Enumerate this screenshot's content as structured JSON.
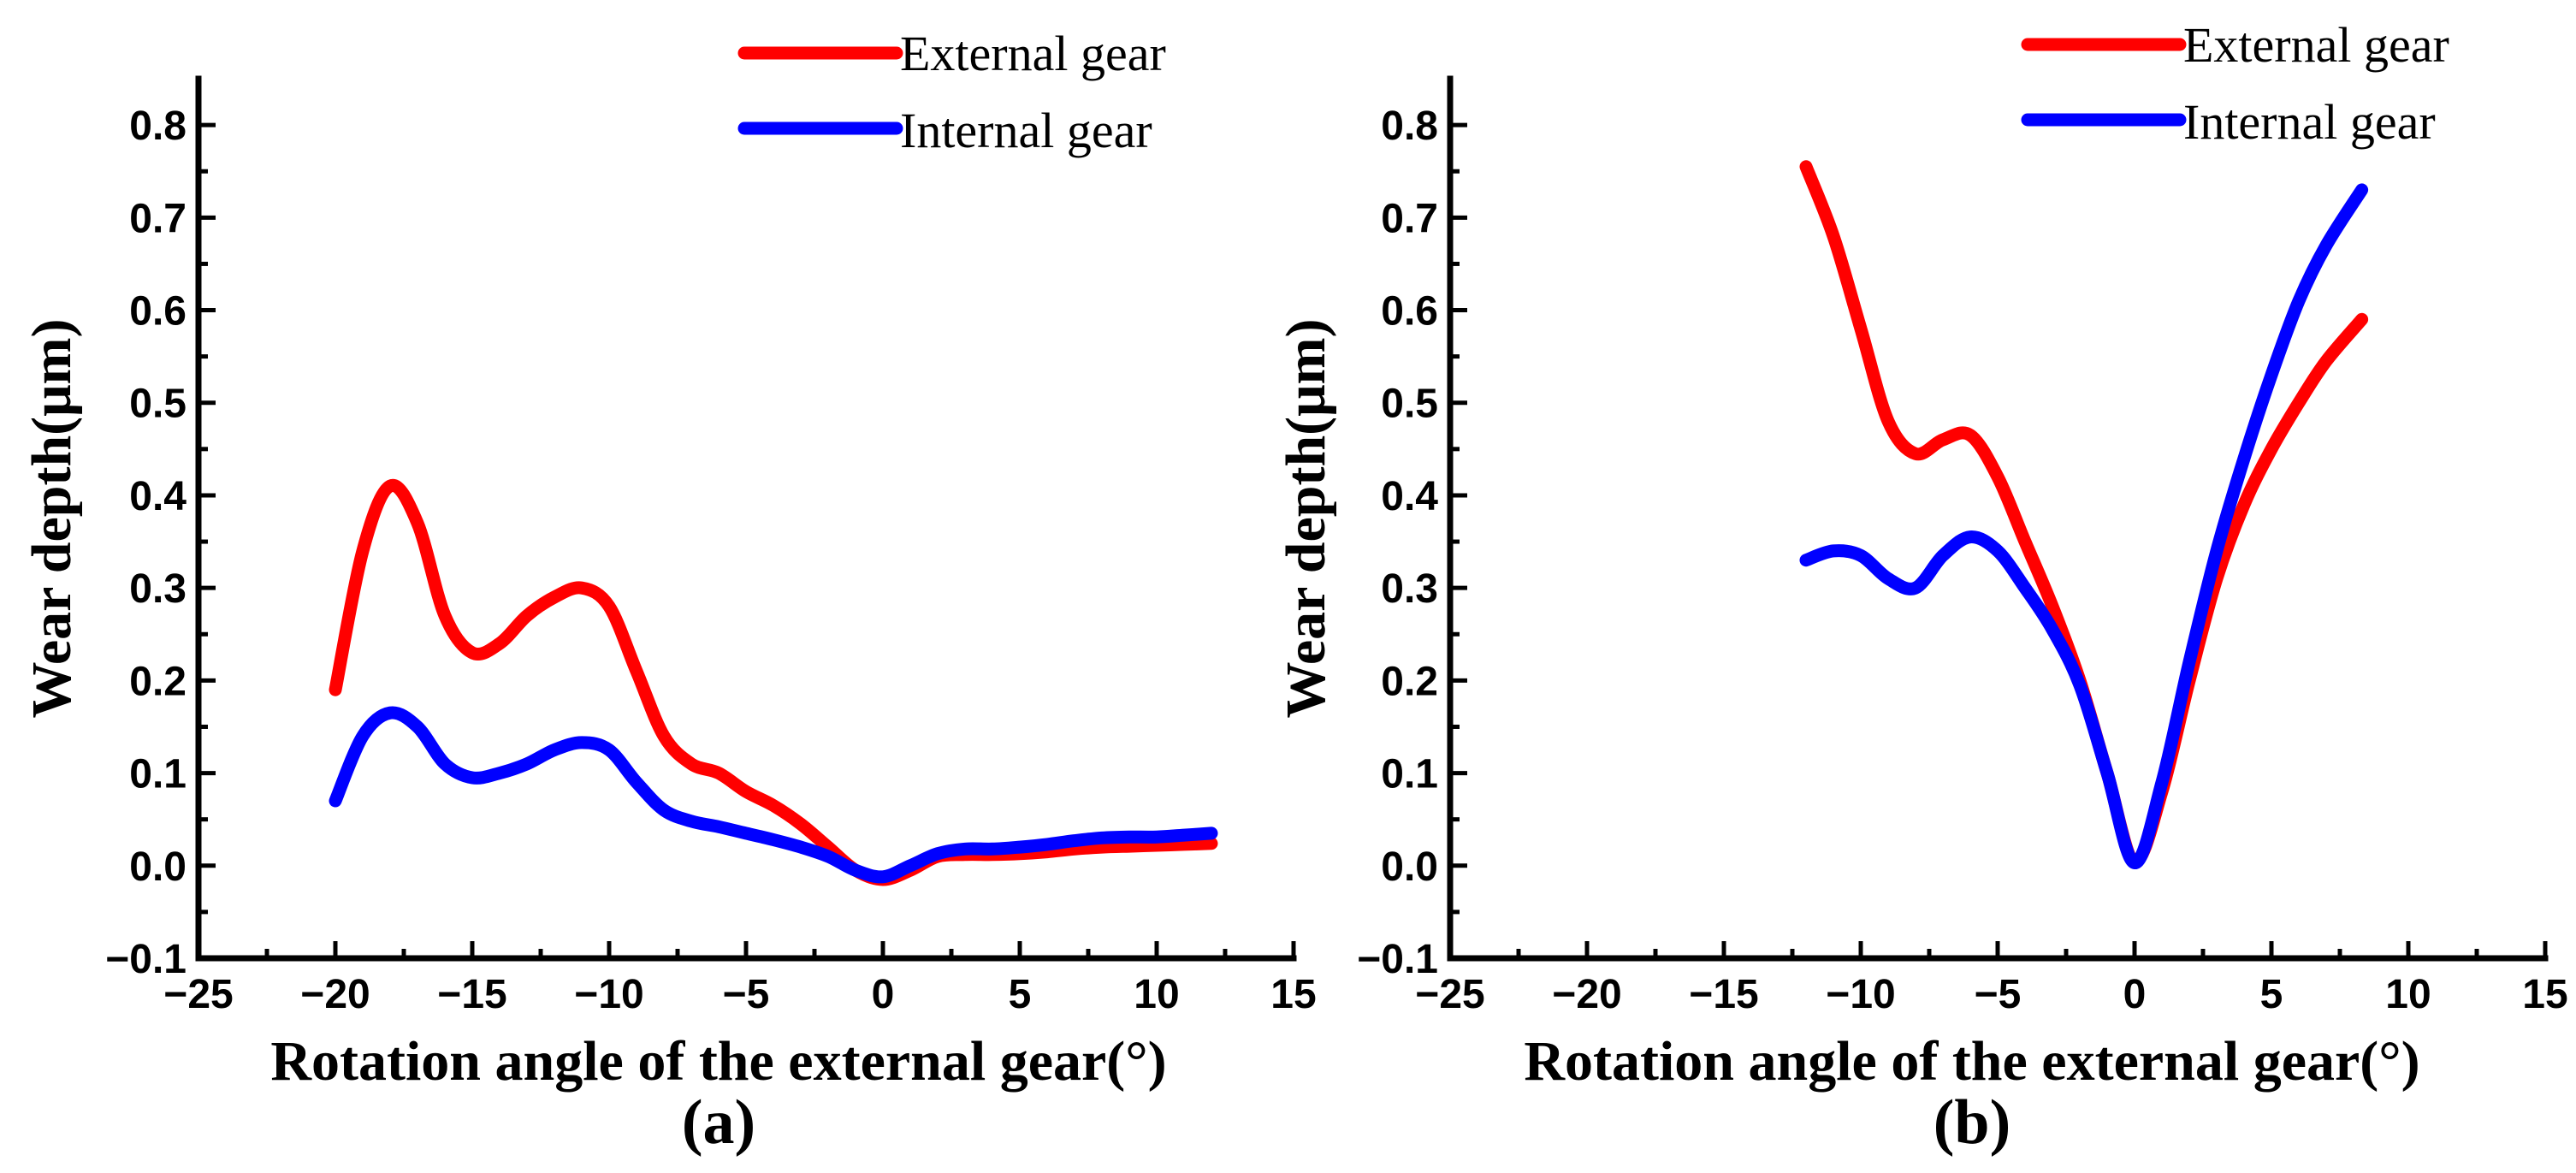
{
  "colors": {
    "external": "#ff0000",
    "internal": "#0000ff",
    "axis": "#000000"
  },
  "chart_data": [
    {
      "type": "line",
      "panel_label": "(a)",
      "xlabel": "Rotation angle of the external gear(°)",
      "ylabel": "Wear depth(μm)",
      "xlim": [
        -25,
        15
      ],
      "ylim": [
        -0.1,
        0.85
      ],
      "xticks": [
        -25,
        -20,
        -15,
        -10,
        -5,
        0,
        5,
        10,
        15
      ],
      "xtick_labels": [
        "−25",
        "−20",
        "−15",
        "−10",
        "−5",
        "0",
        "5",
        "10",
        "15"
      ],
      "yticks": [
        -0.1,
        0.0,
        0.1,
        0.2,
        0.3,
        0.4,
        0.5,
        0.6,
        0.7,
        0.8
      ],
      "ytick_labels": [
        "−0.1",
        "0.0",
        "0.1",
        "0.2",
        "0.3",
        "0.4",
        "0.5",
        "0.6",
        "0.7",
        "0.8"
      ],
      "legend": {
        "position": "top-right",
        "entries": [
          "External gear",
          "Internal gear"
        ]
      },
      "series": [
        {
          "name": "External gear",
          "color_key": "external",
          "x": [
            -20,
            -19,
            -18,
            -17,
            -16,
            -15,
            -14,
            -13,
            -12,
            -11,
            -10,
            -9,
            -8,
            -7,
            -6,
            -5,
            -4,
            -3,
            -2,
            -1,
            0,
            1,
            2,
            3,
            4,
            5,
            6,
            7,
            8,
            9,
            10,
            11,
            12
          ],
          "y": [
            0.19,
            0.34,
            0.41,
            0.37,
            0.27,
            0.23,
            0.24,
            0.27,
            0.29,
            0.3,
            0.28,
            0.21,
            0.14,
            0.11,
            0.1,
            0.08,
            0.065,
            0.045,
            0.02,
            -0.005,
            -0.015,
            -0.005,
            0.01,
            0.012,
            0.012,
            0.013,
            0.015,
            0.018,
            0.02,
            0.021,
            0.022,
            0.023,
            0.024
          ]
        },
        {
          "name": "Internal gear",
          "color_key": "internal",
          "x": [
            -20,
            -19,
            -18,
            -17,
            -16,
            -15,
            -14,
            -13,
            -12,
            -11,
            -10,
            -9,
            -8,
            -7,
            -6,
            -5,
            -4,
            -3,
            -2,
            -1,
            0,
            1,
            2,
            3,
            4,
            5,
            6,
            7,
            8,
            9,
            10,
            11,
            12
          ],
          "y": [
            0.07,
            0.14,
            0.165,
            0.15,
            0.11,
            0.095,
            0.1,
            0.11,
            0.125,
            0.133,
            0.125,
            0.09,
            0.06,
            0.048,
            0.042,
            0.035,
            0.028,
            0.02,
            0.01,
            -0.005,
            -0.012,
            0.0,
            0.013,
            0.018,
            0.018,
            0.02,
            0.023,
            0.027,
            0.03,
            0.031,
            0.031,
            0.033,
            0.035
          ]
        }
      ]
    },
    {
      "type": "line",
      "panel_label": "(b)",
      "xlabel": "Rotation angle of the external gear(°)",
      "ylabel": "Wear depth(μm)",
      "xlim": [
        -25,
        15
      ],
      "ylim": [
        -0.1,
        0.85
      ],
      "xticks": [
        -25,
        -20,
        -15,
        -10,
        -5,
        0,
        5,
        10,
        15
      ],
      "xtick_labels": [
        "−25",
        "−20",
        "−15",
        "−10",
        "−5",
        "0",
        "5",
        "10",
        "15"
      ],
      "yticks": [
        -0.1,
        0.0,
        0.1,
        0.2,
        0.3,
        0.4,
        0.5,
        0.6,
        0.7,
        0.8
      ],
      "ytick_labels": [
        "−0.1",
        "0.0",
        "0.1",
        "0.2",
        "0.3",
        "0.4",
        "0.5",
        "0.6",
        "0.7",
        "0.8"
      ],
      "legend": {
        "position": "top-right",
        "entries": [
          "External gear",
          "Internal gear"
        ]
      },
      "series": [
        {
          "name": "External gear",
          "color_key": "external",
          "x": [
            -12,
            -11,
            -10,
            -9,
            -8,
            -7,
            -6,
            -5,
            -4,
            -3,
            -2,
            -1,
            0,
            1,
            2,
            3,
            4,
            5,
            6,
            7,
            8.3
          ],
          "y": [
            0.755,
            0.68,
            0.58,
            0.48,
            0.445,
            0.46,
            0.465,
            0.42,
            0.35,
            0.28,
            0.2,
            0.1,
            0.005,
            0.08,
            0.2,
            0.31,
            0.39,
            0.45,
            0.5,
            0.545,
            0.59
          ]
        },
        {
          "name": "Internal gear",
          "color_key": "internal",
          "x": [
            -12,
            -11,
            -10,
            -9,
            -8,
            -7,
            -6,
            -5,
            -4,
            -3,
            -2,
            -1,
            0,
            1,
            2,
            3,
            4,
            5,
            6,
            7,
            8.3
          ],
          "y": [
            0.33,
            0.34,
            0.335,
            0.31,
            0.3,
            0.335,
            0.355,
            0.34,
            0.3,
            0.255,
            0.195,
            0.1,
            0.003,
            0.09,
            0.22,
            0.34,
            0.44,
            0.53,
            0.61,
            0.67,
            0.73
          ]
        }
      ]
    }
  ]
}
